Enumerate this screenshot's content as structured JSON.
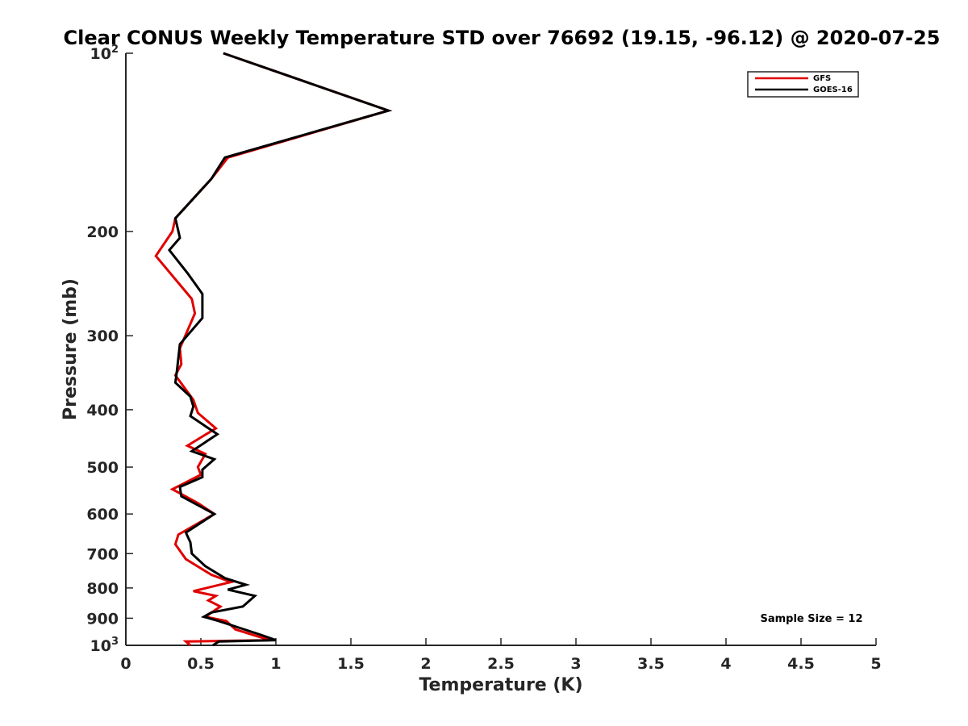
{
  "chart_data": {
    "type": "line",
    "title": "Clear CONUS Weekly Temperature STD over 76692 (19.15, -96.12) @ 2020-07-25",
    "xlabel": "Temperature (K)",
    "ylabel": "Pressure (mb)",
    "xlim": [
      0,
      5
    ],
    "ylim": [
      100,
      1000
    ],
    "y_scale": "log",
    "y_reversed": true,
    "x_ticks": [
      0,
      0.5,
      1,
      1.5,
      2,
      2.5,
      3,
      3.5,
      4,
      4.5,
      5
    ],
    "x_tick_labels": [
      "0",
      "0.5",
      "1",
      "1.5",
      "2",
      "2.5",
      "3",
      "3.5",
      "4",
      "4.5",
      "5"
    ],
    "y_ticks": [
      100,
      200,
      300,
      400,
      500,
      600,
      700,
      800,
      900,
      1000
    ],
    "y_tick_labels": [
      "10²",
      "200",
      "300",
      "400",
      "500",
      "600",
      "700",
      "800",
      "900",
      "10³"
    ],
    "grid": false,
    "legend_position": "top-right",
    "annotation": "Sample Size = 12",
    "series": [
      {
        "name": "GFS",
        "color": "#e00000",
        "points": [
          [
            0.65,
            100
          ],
          [
            1.75,
            125
          ],
          [
            0.68,
            150
          ],
          [
            0.57,
            163
          ],
          [
            0.33,
            190
          ],
          [
            0.31,
            200
          ],
          [
            0.2,
            220
          ],
          [
            0.44,
            260
          ],
          [
            0.46,
            275
          ],
          [
            0.36,
            315
          ],
          [
            0.37,
            335
          ],
          [
            0.33,
            350
          ],
          [
            0.45,
            385
          ],
          [
            0.48,
            405
          ],
          [
            0.6,
            430
          ],
          [
            0.41,
            460
          ],
          [
            0.53,
            475
          ],
          [
            0.48,
            500
          ],
          [
            0.5,
            515
          ],
          [
            0.31,
            545
          ],
          [
            0.48,
            575
          ],
          [
            0.59,
            600
          ],
          [
            0.35,
            650
          ],
          [
            0.33,
            675
          ],
          [
            0.4,
            715
          ],
          [
            0.57,
            760
          ],
          [
            0.7,
            782
          ],
          [
            0.45,
            810
          ],
          [
            0.6,
            825
          ],
          [
            0.55,
            840
          ],
          [
            0.63,
            860
          ],
          [
            0.53,
            895
          ],
          [
            0.67,
            910
          ],
          [
            0.73,
            940
          ],
          [
            0.96,
            980
          ],
          [
            0.4,
            985
          ],
          [
            0.43,
            1000
          ]
        ]
      },
      {
        "name": "GOES-16",
        "color": "#000000",
        "points": [
          [
            0.65,
            100
          ],
          [
            1.75,
            125
          ],
          [
            0.66,
            150
          ],
          [
            0.57,
            163
          ],
          [
            0.33,
            190
          ],
          [
            0.36,
            205
          ],
          [
            0.29,
            215
          ],
          [
            0.41,
            235
          ],
          [
            0.51,
            255
          ],
          [
            0.51,
            280
          ],
          [
            0.36,
            310
          ],
          [
            0.34,
            345
          ],
          [
            0.33,
            360
          ],
          [
            0.43,
            380
          ],
          [
            0.45,
            395
          ],
          [
            0.43,
            410
          ],
          [
            0.61,
            440
          ],
          [
            0.44,
            470
          ],
          [
            0.59,
            485
          ],
          [
            0.51,
            505
          ],
          [
            0.51,
            520
          ],
          [
            0.36,
            540
          ],
          [
            0.37,
            560
          ],
          [
            0.59,
            600
          ],
          [
            0.4,
            645
          ],
          [
            0.43,
            670
          ],
          [
            0.44,
            700
          ],
          [
            0.53,
            735
          ],
          [
            0.66,
            770
          ],
          [
            0.8,
            790
          ],
          [
            0.68,
            805
          ],
          [
            0.86,
            825
          ],
          [
            0.78,
            860
          ],
          [
            0.57,
            880
          ],
          [
            0.52,
            895
          ],
          [
            0.62,
            910
          ],
          [
            0.9,
            960
          ],
          [
            1.0,
            980
          ],
          [
            0.62,
            985
          ],
          [
            0.58,
            1000
          ]
        ]
      }
    ]
  }
}
